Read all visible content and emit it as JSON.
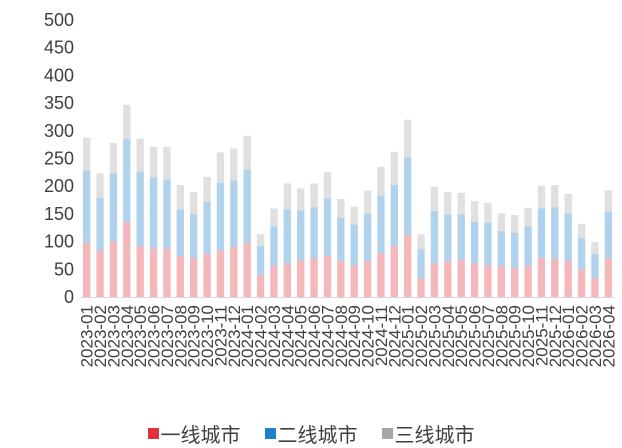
{
  "chart_data": {
    "type": "bar",
    "stacked": true,
    "ylim": [
      0,
      500
    ],
    "yticks": [
      0,
      50,
      100,
      150,
      200,
      250,
      300,
      350,
      400,
      450,
      500
    ],
    "xtick_labels": [
      "2023-01",
      "2023-02",
      "2023-03",
      "2023-04",
      "2023-05",
      "2023-06",
      "2023-07",
      "2023-08",
      "2023-09",
      "2023-10",
      "2023-11",
      "2023-12",
      "2024-01",
      "2024-02",
      "2024-03",
      "2024-04",
      "2024-05",
      "2024-06",
      "2024-07",
      "2024-08",
      "2024-09",
      "2024-10",
      "2024-11",
      "2024-12",
      "2025-01",
      "2025-02",
      "2025-03",
      "2025-04",
      "2025-05",
      "2025-06",
      "2025-07",
      "2025-08",
      "2025-09",
      "2025-10",
      "2025-11",
      "2025-12",
      "2026-01",
      "2026-02",
      "2026-03",
      "2026-04"
    ],
    "legend_position": "bottom",
    "series": [
      {
        "name": "一线城市",
        "color": "#e0303e",
        "monthly_values": [
          98,
          84,
          100,
          135,
          92,
          88,
          87,
          74,
          70,
          78,
          84,
          90,
          98,
          40,
          56,
          60,
          66,
          70,
          74,
          65,
          57,
          65,
          79,
          92,
          112,
          34,
          60,
          64,
          67,
          61,
          57,
          55,
          52,
          56,
          70,
          69,
          66,
          50,
          34,
          70
        ]
      },
      {
        "name": "二线城市",
        "color": "#1f7fc9",
        "monthly_values": [
          130,
          95,
          123,
          150,
          134,
          128,
          125,
          84,
          79,
          94,
          122,
          120,
          132,
          52,
          71,
          98,
          90,
          92,
          104,
          78,
          74,
          85,
          104,
          110,
          140,
          52,
          95,
          85,
          82,
          75,
          77,
          64,
          64,
          72,
          90,
          93,
          84,
          56,
          43,
          84
        ]
      },
      {
        "name": "三线城市",
        "color": "#a6a6a6",
        "monthly_values": [
          60,
          44,
          55,
          62,
          60,
          55,
          59,
          44,
          40,
          45,
          55,
          58,
          61,
          22,
          33,
          47,
          40,
          43,
          47,
          34,
          32,
          42,
          52,
          60,
          68,
          27,
          44,
          40,
          39,
          37,
          36,
          32,
          32,
          33,
          41,
          40,
          36,
          26,
          22,
          39
        ]
      }
    ]
  }
}
